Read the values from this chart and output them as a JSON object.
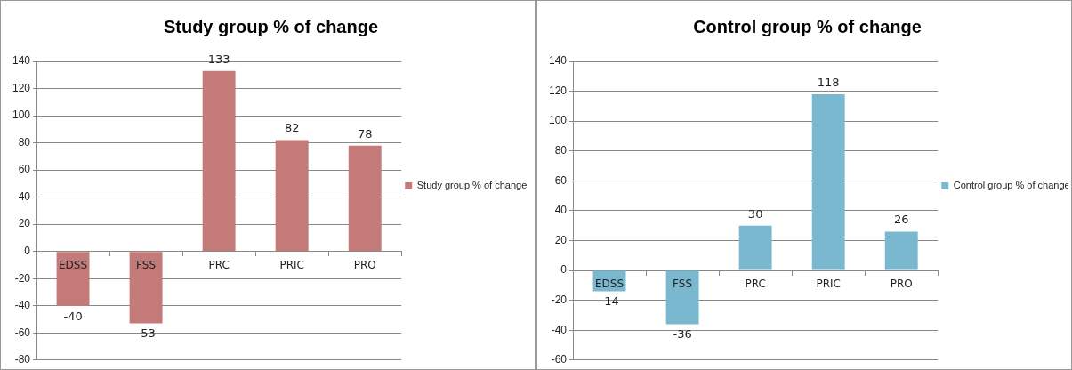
{
  "chart_data": [
    {
      "type": "bar",
      "title": "Study group % of change",
      "categories": [
        "EDSS",
        "FSS",
        "PRC",
        "PRIC",
        "PRO"
      ],
      "series": [
        {
          "name": "Study group % of change",
          "color": "#c47a78",
          "values": [
            -40,
            -53,
            133,
            82,
            78
          ]
        }
      ],
      "ylim": [
        -80,
        140
      ],
      "yticks": [
        -80,
        -60,
        -40,
        -20,
        0,
        20,
        40,
        60,
        80,
        100,
        120,
        140
      ],
      "grid": "y",
      "legend": "right",
      "data_labels": true
    },
    {
      "type": "bar",
      "title": "Control group % of change",
      "categories": [
        "EDSS",
        "FSS",
        "PRC",
        "PRIC",
        "PRO"
      ],
      "series": [
        {
          "name": "Control group % of change",
          "color": "#79b8cf",
          "values": [
            -14,
            -36,
            30,
            118,
            26
          ]
        }
      ],
      "ylim": [
        -60,
        140
      ],
      "yticks": [
        -60,
        -40,
        -20,
        0,
        20,
        40,
        60,
        80,
        100,
        120,
        140
      ],
      "grid": "y",
      "legend": "right",
      "data_labels": true
    }
  ]
}
